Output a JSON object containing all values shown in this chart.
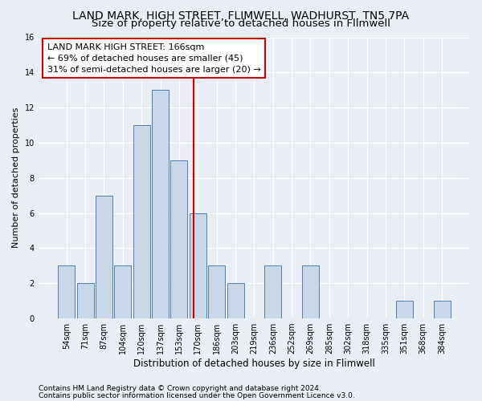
{
  "title": "LAND MARK, HIGH STREET, FLIMWELL, WADHURST, TN5 7PA",
  "subtitle": "Size of property relative to detached houses in Flimwell",
  "xlabel": "Distribution of detached houses by size in Flimwell",
  "ylabel": "Number of detached properties",
  "categories": [
    "54sqm",
    "71sqm",
    "87sqm",
    "104sqm",
    "120sqm",
    "137sqm",
    "153sqm",
    "170sqm",
    "186sqm",
    "203sqm",
    "219sqm",
    "236sqm",
    "252sqm",
    "269sqm",
    "285sqm",
    "302sqm",
    "318sqm",
    "335sqm",
    "351sqm",
    "368sqm",
    "384sqm"
  ],
  "values": [
    3,
    2,
    7,
    3,
    11,
    13,
    9,
    6,
    3,
    2,
    0,
    3,
    0,
    3,
    0,
    0,
    0,
    0,
    1,
    0,
    1
  ],
  "bar_color": "#c8d8e8",
  "bar_edge_color": "#5080b0",
  "vline_color": "#cc0000",
  "annotation_line1": "LAND MARK HIGH STREET: 166sqm",
  "annotation_line2": "← 69% of detached houses are smaller (45)",
  "annotation_line3": "31% of semi-detached houses are larger (20) →",
  "annotation_box_color": "white",
  "annotation_box_edge_color": "#cc0000",
  "ylim": [
    0,
    16
  ],
  "yticks": [
    0,
    2,
    4,
    6,
    8,
    10,
    12,
    14,
    16
  ],
  "footnote1": "Contains HM Land Registry data © Crown copyright and database right 2024.",
  "footnote2": "Contains public sector information licensed under the Open Government Licence v3.0.",
  "background_color": "#e8eef4",
  "grid_color": "#ffffff",
  "title_fontsize": 10,
  "subtitle_fontsize": 9.5,
  "xlabel_fontsize": 8.5,
  "ylabel_fontsize": 8,
  "tick_fontsize": 7,
  "annotation_fontsize": 8,
  "footnote_fontsize": 6.5
}
